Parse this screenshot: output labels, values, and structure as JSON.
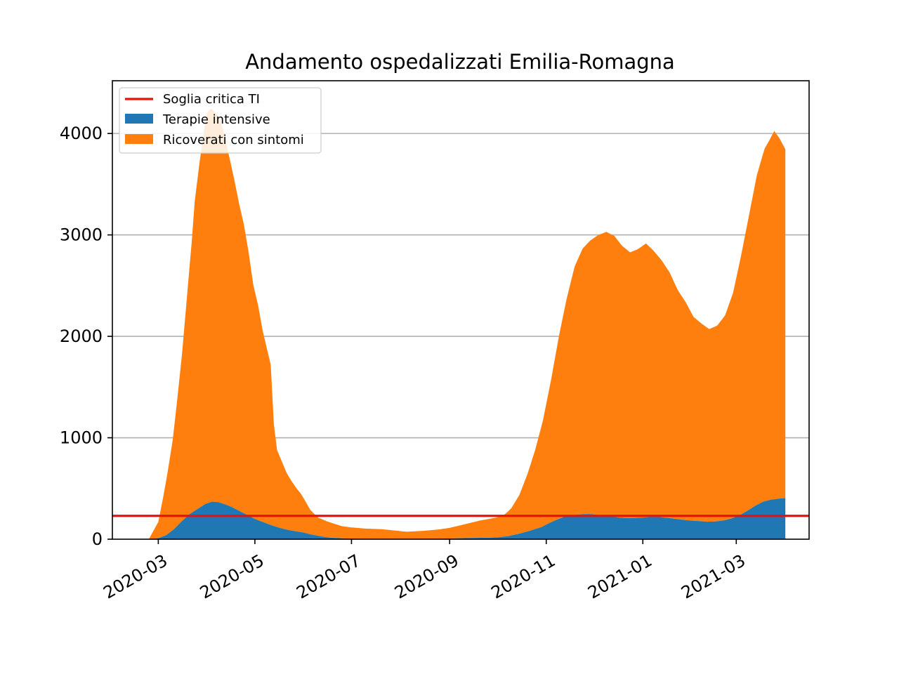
{
  "chart_data": {
    "type": "area",
    "title": "Andamento ospedalizzati Emilia-Romagna",
    "xlabel": "",
    "ylabel": "",
    "xlim": [
      "2020-02-01",
      "2021-04-16"
    ],
    "ylim": [
      0,
      4520
    ],
    "yticks": [
      0,
      1000,
      2000,
      3000,
      4000
    ],
    "xticks": [
      "2020-03-01",
      "2020-05-01",
      "2020-07-01",
      "2020-09-01",
      "2020-11-01",
      "2021-01-01",
      "2021-03-01"
    ],
    "xtick_labels": [
      "2020-03",
      "2020-05",
      "2020-07",
      "2020-09",
      "2020-11",
      "2021-01",
      "2021-03"
    ],
    "grid": "horizontal",
    "legend_position": "top-left",
    "stacked": true,
    "threshold": {
      "name": "Soglia critica TI",
      "value": 230,
      "color": "#e8120c"
    },
    "series": [
      {
        "name": "Terapie intensive",
        "color": "#1f77b4",
        "points": [
          [
            "2020-02-24",
            0
          ],
          [
            "2020-03-01",
            10
          ],
          [
            "2020-03-06",
            40
          ],
          [
            "2020-03-11",
            100
          ],
          [
            "2020-03-16",
            180
          ],
          [
            "2020-03-21",
            250
          ],
          [
            "2020-03-26",
            300
          ],
          [
            "2020-03-31",
            350
          ],
          [
            "2020-04-04",
            370
          ],
          [
            "2020-04-08",
            365
          ],
          [
            "2020-04-12",
            345
          ],
          [
            "2020-04-16",
            320
          ],
          [
            "2020-04-21",
            280
          ],
          [
            "2020-04-26",
            240
          ],
          [
            "2020-05-01",
            200
          ],
          [
            "2020-05-06",
            170
          ],
          [
            "2020-05-11",
            140
          ],
          [
            "2020-05-16",
            115
          ],
          [
            "2020-05-21",
            95
          ],
          [
            "2020-05-26",
            80
          ],
          [
            "2020-06-01",
            65
          ],
          [
            "2020-06-06",
            45
          ],
          [
            "2020-06-11",
            30
          ],
          [
            "2020-06-16",
            18
          ],
          [
            "2020-06-21",
            12
          ],
          [
            "2020-06-26",
            8
          ],
          [
            "2020-07-01",
            6
          ],
          [
            "2020-07-15",
            4
          ],
          [
            "2020-08-01",
            3
          ],
          [
            "2020-08-15",
            4
          ],
          [
            "2020-09-01",
            7
          ],
          [
            "2020-09-15",
            12
          ],
          [
            "2020-09-25",
            15
          ],
          [
            "2020-10-01",
            18
          ],
          [
            "2020-10-08",
            30
          ],
          [
            "2020-10-15",
            55
          ],
          [
            "2020-10-22",
            85
          ],
          [
            "2020-10-29",
            120
          ],
          [
            "2020-11-03",
            160
          ],
          [
            "2020-11-08",
            195
          ],
          [
            "2020-11-13",
            225
          ],
          [
            "2020-11-18",
            240
          ],
          [
            "2020-11-23",
            245
          ],
          [
            "2020-11-28",
            248
          ],
          [
            "2020-12-03",
            242
          ],
          [
            "2020-12-08",
            232
          ],
          [
            "2020-12-13",
            222
          ],
          [
            "2020-12-18",
            212
          ],
          [
            "2020-12-23",
            208
          ],
          [
            "2020-12-28",
            210
          ],
          [
            "2021-01-02",
            215
          ],
          [
            "2021-01-07",
            220
          ],
          [
            "2021-01-12",
            218
          ],
          [
            "2021-01-17",
            210
          ],
          [
            "2021-01-22",
            200
          ],
          [
            "2021-01-27",
            190
          ],
          [
            "2021-02-01",
            183
          ],
          [
            "2021-02-06",
            178
          ],
          [
            "2021-02-11",
            172
          ],
          [
            "2021-02-16",
            175
          ],
          [
            "2021-02-21",
            185
          ],
          [
            "2021-02-26",
            205
          ],
          [
            "2021-03-03",
            235
          ],
          [
            "2021-03-08",
            280
          ],
          [
            "2021-03-13",
            330
          ],
          [
            "2021-03-18",
            370
          ],
          [
            "2021-03-23",
            390
          ],
          [
            "2021-03-28",
            400
          ],
          [
            "2021-04-01",
            405
          ]
        ]
      },
      {
        "name": "Ricoverati con sintomi",
        "color": "#ff7f0e",
        "points": [
          [
            "2020-02-24",
            0
          ],
          [
            "2020-03-01",
            160
          ],
          [
            "2020-03-04",
            380
          ],
          [
            "2020-03-07",
            620
          ],
          [
            "2020-03-10",
            880
          ],
          [
            "2020-03-13",
            1250
          ],
          [
            "2020-03-16",
            1650
          ],
          [
            "2020-03-19",
            2150
          ],
          [
            "2020-03-22",
            2650
          ],
          [
            "2020-03-24",
            3050
          ],
          [
            "2020-03-27",
            3400
          ],
          [
            "2020-03-30",
            3700
          ],
          [
            "2020-04-01",
            3850
          ],
          [
            "2020-04-03",
            3880
          ],
          [
            "2020-04-06",
            3840
          ],
          [
            "2020-04-09",
            3780
          ],
          [
            "2020-04-12",
            3620
          ],
          [
            "2020-04-15",
            3430
          ],
          [
            "2020-04-18",
            3240
          ],
          [
            "2020-04-21",
            3030
          ],
          [
            "2020-04-24",
            2850
          ],
          [
            "2020-04-27",
            2600
          ],
          [
            "2020-04-30",
            2300
          ],
          [
            "2020-05-03",
            2120
          ],
          [
            "2020-05-06",
            1880
          ],
          [
            "2020-05-09",
            1700
          ],
          [
            "2020-05-11",
            1580
          ],
          [
            "2020-05-13",
            1000
          ],
          [
            "2020-05-15",
            760
          ],
          [
            "2020-05-18",
            660
          ],
          [
            "2020-05-21",
            560
          ],
          [
            "2020-05-24",
            490
          ],
          [
            "2020-05-27",
            430
          ],
          [
            "2020-05-30",
            380
          ],
          [
            "2020-06-02",
            310
          ],
          [
            "2020-06-05",
            240
          ],
          [
            "2020-06-10",
            180
          ],
          [
            "2020-06-15",
            160
          ],
          [
            "2020-06-20",
            140
          ],
          [
            "2020-06-25",
            120
          ],
          [
            "2020-07-01",
            110
          ],
          [
            "2020-07-10",
            100
          ],
          [
            "2020-07-20",
            95
          ],
          [
            "2020-07-30",
            80
          ],
          [
            "2020-08-05",
            70
          ],
          [
            "2020-08-15",
            78
          ],
          [
            "2020-08-25",
            90
          ],
          [
            "2020-09-01",
            105
          ],
          [
            "2020-09-10",
            135
          ],
          [
            "2020-09-20",
            170
          ],
          [
            "2020-09-30",
            195
          ],
          [
            "2020-10-05",
            210
          ],
          [
            "2020-10-10",
            270
          ],
          [
            "2020-10-15",
            380
          ],
          [
            "2020-10-20",
            560
          ],
          [
            "2020-10-25",
            780
          ],
          [
            "2020-10-30",
            1050
          ],
          [
            "2020-11-04",
            1400
          ],
          [
            "2020-11-09",
            1800
          ],
          [
            "2020-11-14",
            2150
          ],
          [
            "2020-11-19",
            2450
          ],
          [
            "2020-11-24",
            2620
          ],
          [
            "2020-11-29",
            2700
          ],
          [
            "2020-12-04",
            2760
          ],
          [
            "2020-12-09",
            2800
          ],
          [
            "2020-12-14",
            2770
          ],
          [
            "2020-12-19",
            2680
          ],
          [
            "2020-12-24",
            2620
          ],
          [
            "2020-12-29",
            2650
          ],
          [
            "2021-01-03",
            2700
          ],
          [
            "2021-01-08",
            2620
          ],
          [
            "2021-01-13",
            2530
          ],
          [
            "2021-01-18",
            2420
          ],
          [
            "2021-01-23",
            2260
          ],
          [
            "2021-01-28",
            2150
          ],
          [
            "2021-02-02",
            2010
          ],
          [
            "2021-02-07",
            1950
          ],
          [
            "2021-02-12",
            1900
          ],
          [
            "2021-02-17",
            1930
          ],
          [
            "2021-02-22",
            2020
          ],
          [
            "2021-02-27",
            2220
          ],
          [
            "2021-03-04",
            2550
          ],
          [
            "2021-03-09",
            2900
          ],
          [
            "2021-03-14",
            3250
          ],
          [
            "2021-03-19",
            3480
          ],
          [
            "2021-03-22",
            3550
          ],
          [
            "2021-03-25",
            3630
          ],
          [
            "2021-03-28",
            3560
          ],
          [
            "2021-04-01",
            3440
          ]
        ]
      }
    ]
  }
}
